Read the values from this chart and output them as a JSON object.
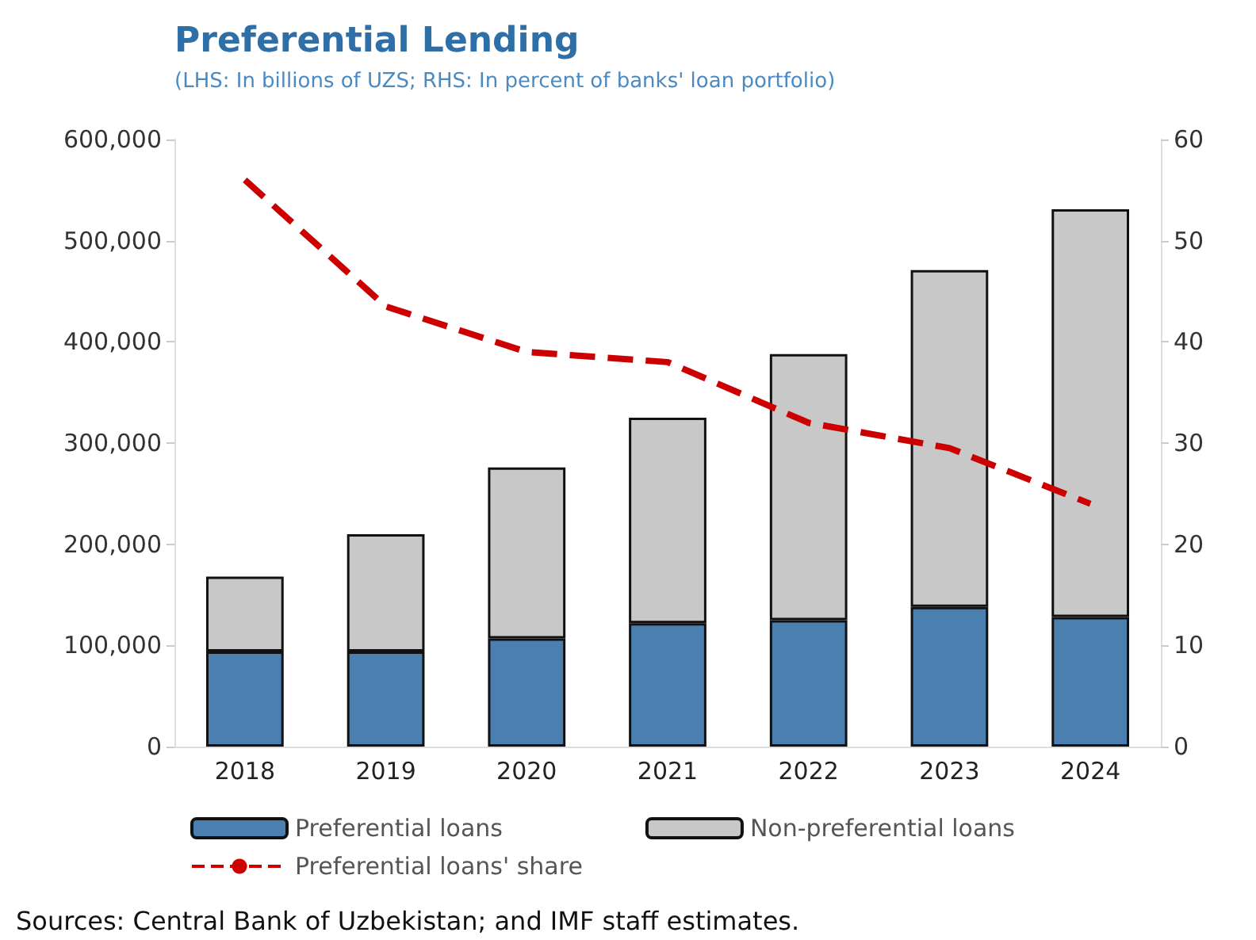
{
  "chart_data": {
    "type": "bar",
    "title": "Preferential Lending",
    "subtitle": "(LHS: In billions of UZS; RHS: In percent of banks' loan portfolio)",
    "categories": [
      "2018",
      "2019",
      "2020",
      "2021",
      "2022",
      "2023",
      "2024"
    ],
    "stacked": true,
    "series": [
      {
        "name": "Preferential loans",
        "color": "#4a7fb0",
        "values": [
          94000,
          94000,
          107000,
          122000,
          125000,
          138000,
          128000
        ]
      },
      {
        "name": "Non-preferential loans",
        "color": "#c8c8c8",
        "values": [
          74000,
          116000,
          169000,
          203000,
          263000,
          333000,
          403000
        ]
      },
      {
        "name": "Preferential loans' share",
        "type": "line",
        "axis": "y2",
        "color": "#cc0000",
        "line_style": "dashed",
        "values": [
          56,
          43.5,
          39,
          38,
          32,
          29.5,
          24
        ]
      }
    ],
    "ylim": [
      0,
      600000
    ],
    "yticks": [
      0,
      {
        "value": 100000,
        "label": "100,000"
      },
      {
        "value": 200000,
        "label": "200,000"
      },
      {
        "value": 300000,
        "label": "300,000"
      },
      {
        "value": 400000,
        "label": "400,000"
      },
      {
        "value": 500000,
        "label": "500,000"
      },
      {
        "value": 600000,
        "label": "600,000"
      }
    ],
    "y2lim": [
      0,
      60
    ],
    "y2ticks": [
      0,
      10,
      20,
      30,
      40,
      50,
      60
    ],
    "grid": false,
    "legend": "bottom",
    "marker": "none",
    "annotations": [
      "Sources: Central Bank of Uzbekistan; and IMF staff estimates."
    ]
  }
}
